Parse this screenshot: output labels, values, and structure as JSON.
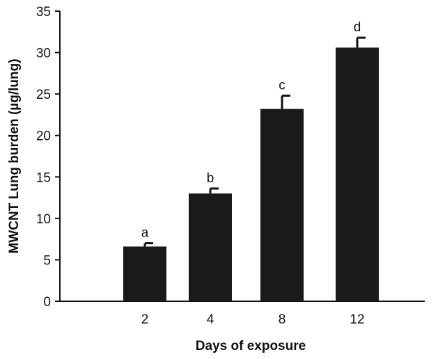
{
  "chart_data": {
    "type": "bar",
    "xlabel": "Days of exposure",
    "ylabel": "MWCNT Lung burden (µg/lung)",
    "categories": [
      "2",
      "4",
      "8",
      "12"
    ],
    "values": [
      6.6,
      13.0,
      23.2,
      30.6
    ],
    "errors": [
      0.4,
      0.6,
      1.6,
      1.2
    ],
    "significance_labels": [
      "a",
      "b",
      "c",
      "d"
    ],
    "ylim": [
      0,
      35
    ],
    "yticks": [
      0,
      5,
      10,
      15,
      20,
      25,
      30,
      35
    ],
    "bar_color": "#1a1a1a",
    "grid": false
  }
}
